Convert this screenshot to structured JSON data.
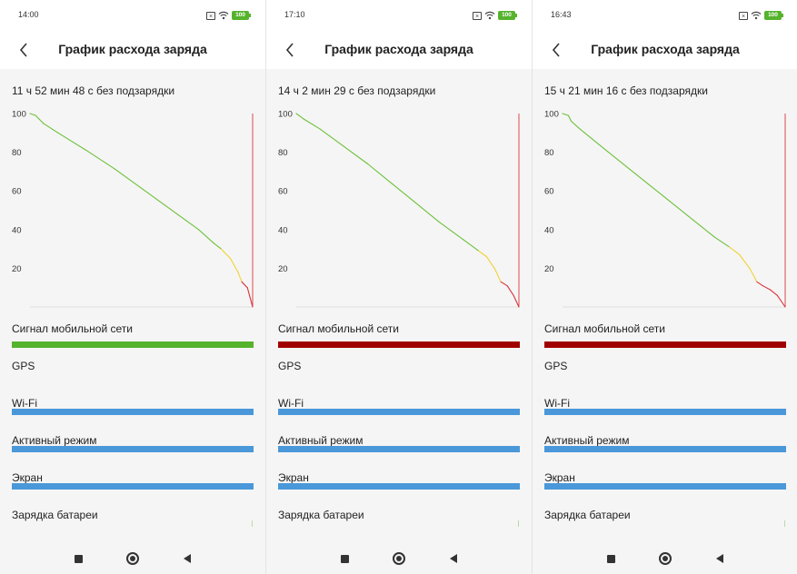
{
  "screens": [
    {
      "status": {
        "time": "14:00",
        "battery": "100",
        "icons": [
          "sim-off-icon",
          "wifi-icon",
          "battery-icon"
        ]
      },
      "header": {
        "title": "График расхода заряда",
        "back_icon": "chevron-left-icon"
      },
      "duration": "11 ч 52 мин 48 с без подзарядки",
      "rows": {
        "signal": {
          "label": "Сигнал мобильной сети",
          "color": "#55b32c"
        },
        "gps": {
          "label": "GPS"
        },
        "wifi": {
          "label": "Wi-Fi",
          "color": "#4a98d9"
        },
        "active": {
          "label": "Активный режим",
          "color": "#4a98d9"
        },
        "screen": {
          "label": "Экран",
          "color": "#4a98d9"
        },
        "charge": {
          "label": "Зарядка батареи"
        }
      }
    },
    {
      "status": {
        "time": "17:10",
        "battery": "100",
        "icons": [
          "sim-off-icon",
          "wifi-icon",
          "battery-icon"
        ]
      },
      "header": {
        "title": "График расхода заряда",
        "back_icon": "chevron-left-icon"
      },
      "duration": "14 ч 2 мин 29 с без подзарядки",
      "rows": {
        "signal": {
          "label": "Сигнал мобильной сети",
          "color": "#a00000"
        },
        "gps": {
          "label": "GPS"
        },
        "wifi": {
          "label": "Wi-Fi",
          "color": "#4a98d9"
        },
        "active": {
          "label": "Активный режим",
          "color": "#4a98d9"
        },
        "screen": {
          "label": "Экран",
          "color": "#4a98d9"
        },
        "charge": {
          "label": "Зарядка батареи"
        }
      }
    },
    {
      "status": {
        "time": "16:43",
        "battery": "100",
        "icons": [
          "sim-off-icon",
          "wifi-icon",
          "battery-icon"
        ]
      },
      "header": {
        "title": "График расхода заряда",
        "back_icon": "chevron-left-icon"
      },
      "duration": "15 ч 21 мин 16 с без подзарядки",
      "rows": {
        "signal": {
          "label": "Сигнал мобильной сети",
          "color": "#a00000"
        },
        "gps": {
          "label": "GPS"
        },
        "wifi": {
          "label": "Wi-Fi",
          "color": "#4a98d9"
        },
        "active": {
          "label": "Активный режим",
          "color": "#4a98d9"
        },
        "screen": {
          "label": "Экран",
          "color": "#4a98d9"
        },
        "charge": {
          "label": "Зарядка батареи"
        }
      }
    }
  ],
  "nav_icons": [
    "recent-apps-icon",
    "home-icon",
    "back-triangle-icon"
  ],
  "chart_data": [
    {
      "type": "line",
      "title": "",
      "xlabel": "",
      "ylabel": "",
      "ylim": [
        0,
        100
      ],
      "yticks": [
        20,
        40,
        60,
        80,
        100
      ],
      "x_unit": "hours",
      "xlim": [
        0,
        11.88
      ],
      "series": [
        {
          "points": [
            [
              0,
              100
            ],
            [
              0.3,
              99
            ],
            [
              0.5,
              97
            ],
            [
              0.7,
              95
            ],
            [
              1.5,
              90
            ],
            [
              3,
              81
            ],
            [
              4.5,
              71.5
            ],
            [
              6,
              61
            ],
            [
              7.5,
              50.5
            ],
            [
              9,
              40
            ],
            [
              9.8,
              33
            ],
            [
              10.2,
              30
            ],
            [
              10.7,
              25
            ],
            [
              11.1,
              18
            ],
            [
              11.3,
              13
            ],
            [
              11.6,
              10
            ],
            [
              11.88,
              0
            ]
          ],
          "color_bands": [
            {
              "from": 30,
              "color": "#6cc13a"
            },
            {
              "from": 13,
              "to": 30,
              "color": "#f0d233"
            },
            {
              "to": 13,
              "color": "#d8323c"
            }
          ]
        }
      ]
    },
    {
      "type": "line",
      "title": "",
      "xlabel": "",
      "ylabel": "",
      "ylim": [
        0,
        100
      ],
      "yticks": [
        20,
        40,
        60,
        80,
        100
      ],
      "x_unit": "hours",
      "xlim": [
        0,
        14.04
      ],
      "series": [
        {
          "points": [
            [
              0,
              100
            ],
            [
              0.5,
              97
            ],
            [
              1.5,
              92
            ],
            [
              3,
              83
            ],
            [
              4.5,
              74
            ],
            [
              6,
              64
            ],
            [
              7.5,
              54
            ],
            [
              9,
              44
            ],
            [
              10.5,
              35
            ],
            [
              11.5,
              29
            ],
            [
              12,
              26
            ],
            [
              12.5,
              20
            ],
            [
              12.9,
              13
            ],
            [
              13.3,
              11
            ],
            [
              13.7,
              6
            ],
            [
              14.04,
              0
            ]
          ],
          "color_bands": [
            {
              "from": 30,
              "color": "#6cc13a"
            },
            {
              "from": 13,
              "to": 30,
              "color": "#f0d233"
            },
            {
              "to": 13,
              "color": "#d8323c"
            }
          ]
        }
      ]
    },
    {
      "type": "line",
      "title": "",
      "xlabel": "",
      "ylabel": "",
      "ylim": [
        0,
        100
      ],
      "yticks": [
        20,
        40,
        60,
        80,
        100
      ],
      "x_unit": "hours",
      "xlim": [
        0,
        15.35
      ],
      "series": [
        {
          "points": [
            [
              0,
              100
            ],
            [
              0.4,
              99
            ],
            [
              0.6,
              96
            ],
            [
              1.2,
              92
            ],
            [
              3,
              81
            ],
            [
              5,
              69
            ],
            [
              7,
              57
            ],
            [
              9,
              45
            ],
            [
              10.5,
              36
            ],
            [
              11.5,
              31
            ],
            [
              12.2,
              27
            ],
            [
              12.9,
              20
            ],
            [
              13.4,
              13
            ],
            [
              13.8,
              11
            ],
            [
              14.3,
              9
            ],
            [
              14.8,
              6
            ],
            [
              15.35,
              0
            ]
          ],
          "color_bands": [
            {
              "from": 30,
              "color": "#6cc13a"
            },
            {
              "from": 13,
              "to": 30,
              "color": "#f0d233"
            },
            {
              "to": 13,
              "color": "#d8323c"
            }
          ]
        }
      ]
    }
  ]
}
